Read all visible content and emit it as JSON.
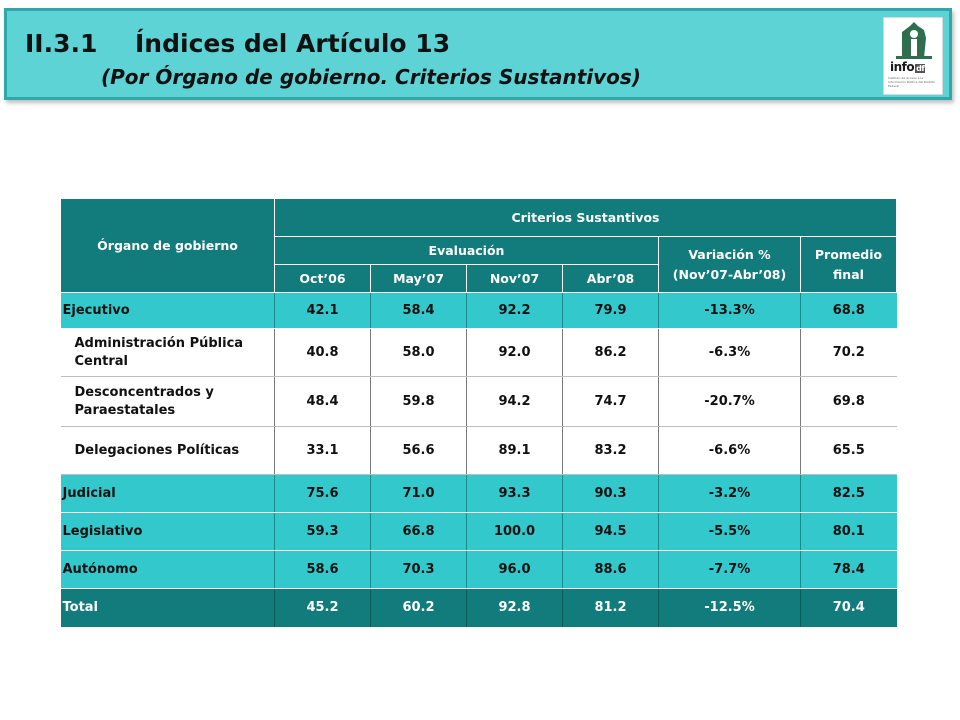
{
  "header": {
    "section_number": "II.3.1",
    "title": "Índices del Artículo 13",
    "subtitle": "(Por Órgano de gobierno. Criterios Sustantivos)",
    "logo_text": "info",
    "logo_suffix": "df",
    "logo_fine_print": "Instituto de Acceso a la Información Pública del Distrito Federal"
  },
  "table": {
    "col_organo": "Órgano de gobierno",
    "group_title": "Criterios Sustantivos",
    "evaluacion": "Evaluación",
    "variacion": "Variación % (Nov’07-Abr’08)",
    "promedio": "Promedio final",
    "periods": [
      "Oct’06",
      "May’07",
      "Nov’07",
      "Abr’08"
    ],
    "rows": [
      {
        "label": "Ejecutivo",
        "values": [
          "42.1",
          "58.4",
          "92.2",
          "79.9"
        ],
        "variacion": "-13.3%",
        "promedio": "68.8"
      },
      {
        "label": "Administración Pública Central",
        "values": [
          "40.8",
          "58.0",
          "92.0",
          "86.2"
        ],
        "variacion": "-6.3%",
        "promedio": "70.2"
      },
      {
        "label": "Desconcentrados y Paraestatales",
        "values": [
          "48.4",
          "59.8",
          "94.2",
          "74.7"
        ],
        "variacion": "-20.7%",
        "promedio": "69.8"
      },
      {
        "label": "Delegaciones Políticas",
        "values": [
          "33.1",
          "56.6",
          "89.1",
          "83.2"
        ],
        "variacion": "-6.6%",
        "promedio": "65.5"
      },
      {
        "label": "Judicial",
        "values": [
          "75.6",
          "71.0",
          "93.3",
          "90.3"
        ],
        "variacion": "-3.2%",
        "promedio": "82.5"
      },
      {
        "label": "Legislativo",
        "values": [
          "59.3",
          "66.8",
          "100.0",
          "94.5"
        ],
        "variacion": "-5.5%",
        "promedio": "80.1"
      },
      {
        "label": "Autónomo",
        "values": [
          "58.6",
          "70.3",
          "96.0",
          "88.6"
        ],
        "variacion": "-7.7%",
        "promedio": "78.4"
      },
      {
        "label": "Total",
        "values": [
          "45.2",
          "60.2",
          "92.8",
          "81.2"
        ],
        "variacion": "-12.5%",
        "promedio": "70.4"
      }
    ]
  },
  "colors": {
    "banner": "#5dd3d5",
    "header_dark": "#127b7c",
    "row_cyan": "#33c9cc"
  }
}
